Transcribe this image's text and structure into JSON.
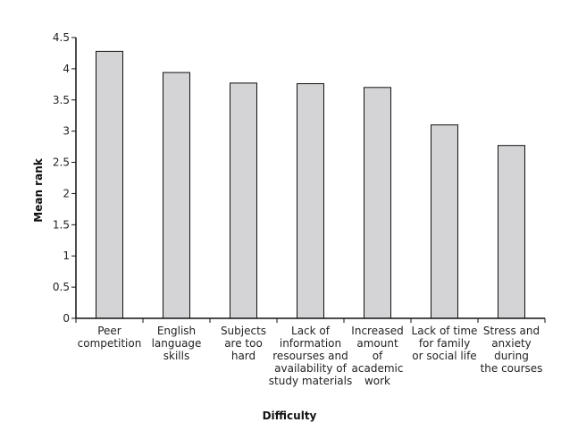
{
  "chart_data": {
    "type": "bar",
    "categories": [
      [
        "Peer",
        "competition"
      ],
      [
        "English",
        "language",
        "skills"
      ],
      [
        "Subjects",
        "are too",
        "hard"
      ],
      [
        "Lack of",
        "information",
        "resourses and",
        "availability of",
        "study materials"
      ],
      [
        "Increased",
        "amount",
        "of",
        "academic",
        "work"
      ],
      [
        "Lack of time",
        "for family",
        "or social life"
      ],
      [
        "Stress and",
        "anxiety",
        "during",
        "the courses"
      ]
    ],
    "values": [
      4.28,
      3.94,
      3.77,
      3.76,
      3.7,
      3.1,
      2.77
    ],
    "title": "",
    "xlabel": "Difficulty",
    "ylabel": "Mean rank",
    "ylim": [
      0,
      4.5
    ],
    "yticks": [
      "0",
      "0.5",
      "1",
      "1.5",
      "2",
      "2.5",
      "3",
      "3.5",
      "4",
      "4.5"
    ],
    "grid": false,
    "bar_color": "#d4d4d6"
  }
}
